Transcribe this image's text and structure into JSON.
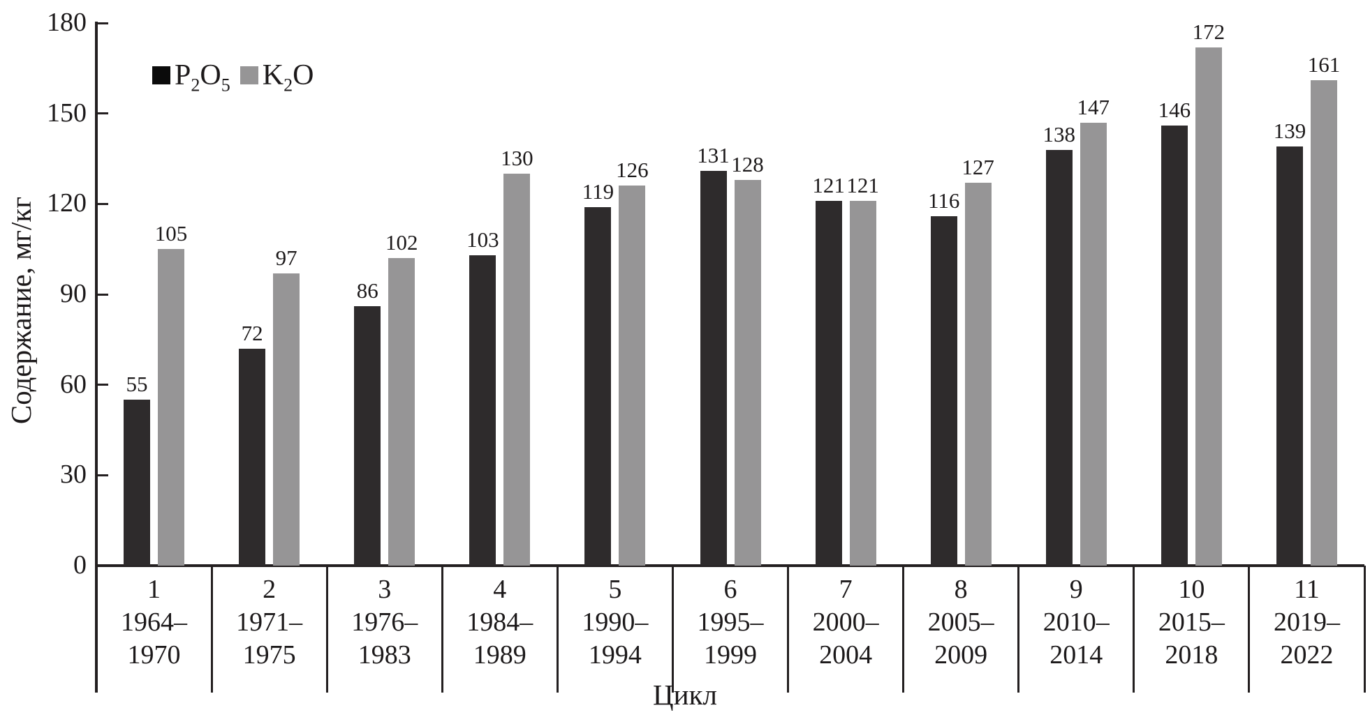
{
  "axes": {
    "y_title": "Содержание, мг/кг",
    "x_title": "Цикл"
  },
  "legend": {
    "items": [
      {
        "name": "P2O5",
        "swatch_color": "#0b0b0b",
        "parts": {
          "b1": "P",
          "s1": "2",
          "b2": "O",
          "s2": "5"
        }
      },
      {
        "name": "K2O",
        "swatch_color": "#969596",
        "parts": {
          "b1": "K",
          "s1": "2",
          "b2": "O",
          "s2": ""
        }
      }
    ]
  },
  "chart_data": {
    "type": "bar",
    "title": "",
    "xlabel": "Цикл",
    "ylabel": "Содержание, мг/кг",
    "ylim": [
      0,
      180
    ],
    "yticks": [
      0,
      30,
      60,
      90,
      120,
      150,
      180
    ],
    "grid": false,
    "legend_position": "inside-top-left",
    "categories": [
      {
        "num": "1",
        "line1": "1964–",
        "line2": "1970"
      },
      {
        "num": "2",
        "line1": "1971–",
        "line2": "1975"
      },
      {
        "num": "3",
        "line1": "1976–",
        "line2": "1983"
      },
      {
        "num": "4",
        "line1": "1984–",
        "line2": "1989"
      },
      {
        "num": "5",
        "line1": "1990–",
        "line2": "1994"
      },
      {
        "num": "6",
        "line1": "1995–",
        "line2": "1999"
      },
      {
        "num": "7",
        "line1": "2000–",
        "line2": "2004"
      },
      {
        "num": "8",
        "line1": "2005–",
        "line2": "2009"
      },
      {
        "num": "9",
        "line1": "2010–",
        "line2": "2014"
      },
      {
        "num": "10",
        "line1": "2015–",
        "line2": "2018"
      },
      {
        "num": "11",
        "line1": "2019–",
        "line2": "2022"
      }
    ],
    "series": [
      {
        "name": "P2O5",
        "color": "#2e2b2c",
        "values": [
          55,
          72,
          86,
          103,
          119,
          131,
          121,
          116,
          138,
          146,
          139
        ]
      },
      {
        "name": "K2O",
        "color": "#969596",
        "values": [
          105,
          97,
          102,
          130,
          126,
          128,
          121,
          127,
          147,
          172,
          161
        ]
      }
    ]
  }
}
